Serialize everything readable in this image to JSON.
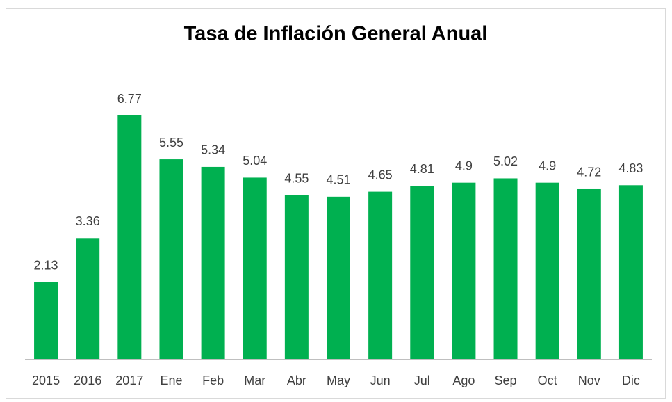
{
  "chart_data": {
    "type": "bar",
    "title": "Tasa de Inflación General Anual",
    "categories": [
      "2015",
      "2016",
      "2017",
      "Ene",
      "Feb",
      "Mar",
      "Abr",
      "May",
      "Jun",
      "Jul",
      "Ago",
      "Sep",
      "Oct",
      "Nov",
      "Dic"
    ],
    "values": [
      2.13,
      3.36,
      6.77,
      5.55,
      5.34,
      5.04,
      4.55,
      4.51,
      4.65,
      4.81,
      4.9,
      5.02,
      4.9,
      4.72,
      4.83
    ],
    "color": "#00b050"
  }
}
